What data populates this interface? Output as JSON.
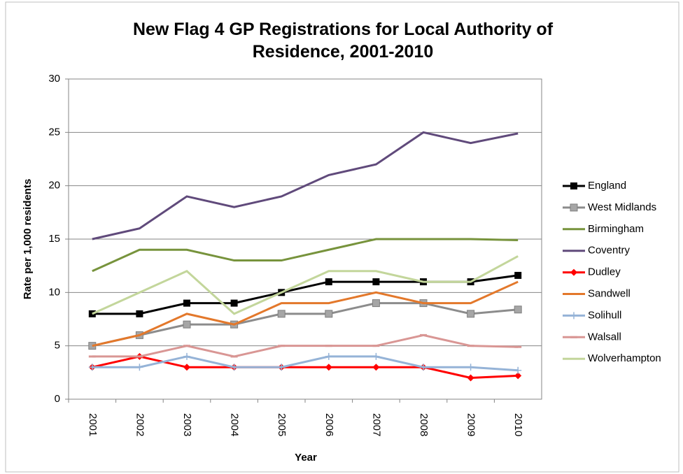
{
  "chart_data": {
    "type": "line",
    "title": "New Flag 4 GP Registrations for Local Authority of Residence, 2001-2010",
    "xlabel": "Year",
    "ylabel": "Rate per 1,000 residents",
    "categories": [
      "2001",
      "2002",
      "2003",
      "2004",
      "2005",
      "2006",
      "2007",
      "2008",
      "2009",
      "2010"
    ],
    "ylim": [
      0,
      30
    ],
    "yticks": [
      0,
      5,
      10,
      15,
      20,
      25,
      30
    ],
    "grid": true,
    "legend": "right",
    "series": [
      {
        "name": "England",
        "color": "#000000",
        "marker": "square",
        "values": [
          8,
          8,
          9,
          9,
          10,
          11,
          11,
          11,
          11,
          11.6
        ]
      },
      {
        "name": "West Midlands",
        "color": "#8c8c8c",
        "marker": "square-gray",
        "values": [
          5,
          6,
          7,
          7,
          8,
          8,
          9,
          9,
          8,
          8.4
        ]
      },
      {
        "name": "Birmingham",
        "color": "#77933c",
        "marker": "none",
        "values": [
          12,
          14,
          14,
          13,
          13,
          14,
          15,
          15,
          15,
          14.9
        ]
      },
      {
        "name": "Coventry",
        "color": "#604a7b",
        "marker": "none",
        "values": [
          15,
          16,
          19,
          18,
          19,
          21,
          22,
          25,
          24,
          24.9
        ]
      },
      {
        "name": "Dudley",
        "color": "#ff0000",
        "marker": "diamond",
        "values": [
          3,
          4,
          3,
          3,
          3,
          3,
          3,
          3,
          2,
          2.2
        ]
      },
      {
        "name": "Sandwell",
        "color": "#e3782b",
        "marker": "none",
        "values": [
          5,
          6,
          8,
          7,
          9,
          9,
          10,
          9,
          9,
          11
        ]
      },
      {
        "name": "Solihull",
        "color": "#95b3d7",
        "marker": "plus",
        "values": [
          3,
          3,
          4,
          3,
          3,
          4,
          4,
          3,
          3,
          2.7
        ]
      },
      {
        "name": "Walsall",
        "color": "#d99694",
        "marker": "dash",
        "values": [
          4,
          4,
          5,
          4,
          5,
          5,
          5,
          6,
          5,
          4.9
        ]
      },
      {
        "name": "Wolverhampton",
        "color": "#c3d69b",
        "marker": "none",
        "values": [
          8,
          10,
          12,
          8,
          10,
          12,
          12,
          11,
          11,
          13.4
        ]
      }
    ]
  }
}
